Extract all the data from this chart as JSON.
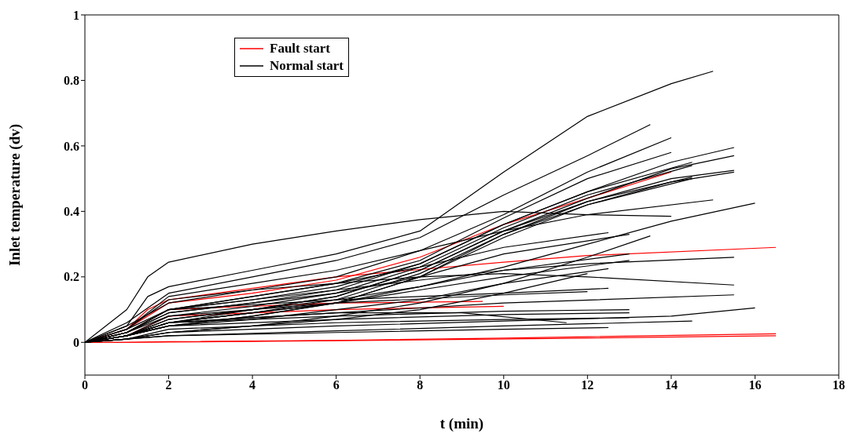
{
  "chart_data": {
    "type": "line",
    "xlabel": "t (min)",
    "ylabel": "Inlet temperature (dv)",
    "xlim": [
      0,
      18
    ],
    "xticks": [
      0,
      2,
      4,
      6,
      8,
      10,
      12,
      14,
      16,
      18
    ],
    "ylim": [
      -0.1,
      1
    ],
    "yticks": [
      0,
      0.2,
      0.4,
      0.6,
      0.8,
      1
    ],
    "grid": false,
    "legend": "top left",
    "marker": "none",
    "line_style": "solid",
    "series": [
      {
        "name": "Fault start",
        "color": "#ff0000",
        "x": [
          0,
          1,
          2,
          6,
          10,
          16.5
        ],
        "values": [
          0,
          0,
          0.002,
          0.006,
          0.013,
          0.026
        ]
      },
      {
        "name": "Normal start",
        "color": "#000000",
        "x": [
          0,
          1,
          1.5,
          2,
          4,
          6,
          8,
          10,
          12,
          14,
          15
        ],
        "values": [
          0,
          0.05,
          0.14,
          0.17,
          0.22,
          0.27,
          0.34,
          0.52,
          0.69,
          0.79,
          0.828
        ]
      },
      {
        "color": "#ff0000",
        "x": [
          0,
          1,
          6,
          12,
          16.5
        ],
        "values": [
          0,
          0,
          0.005,
          0.013,
          0.02
        ]
      },
      {
        "color": "#ff0000",
        "x": [
          0,
          1,
          1.5,
          2,
          6,
          10,
          12,
          16.5
        ],
        "values": [
          0,
          0.04,
          0.1,
          0.13,
          0.2,
          0.245,
          0.265,
          0.29
        ]
      },
      {
        "color": "#ff0000",
        "x": [
          0,
          1,
          2,
          4,
          6,
          8,
          10,
          12,
          14
        ],
        "values": [
          0,
          0.04,
          0.12,
          0.15,
          0.19,
          0.26,
          0.36,
          0.44,
          0.52
        ]
      },
      {
        "color": "#ff0000",
        "x": [
          0,
          1,
          2,
          6,
          10
        ],
        "values": [
          0,
          0.02,
          0.08,
          0.1,
          0.11
        ]
      },
      {
        "color": "#ff0000",
        "x": [
          0,
          1,
          2,
          6,
          9.5
        ],
        "values": [
          0,
          0.03,
          0.1,
          0.12,
          0.125
        ]
      },
      {
        "color": "#000000",
        "x": [
          0,
          1,
          1.5,
          2,
          4,
          6,
          8,
          10,
          12,
          14
        ],
        "values": [
          0,
          0.1,
          0.2,
          0.245,
          0.3,
          0.34,
          0.375,
          0.4,
          0.39,
          0.385
        ]
      },
      {
        "color": "#000000",
        "x": [
          0,
          1,
          2,
          4,
          6,
          8,
          10,
          12,
          13.5
        ],
        "values": [
          0,
          0.06,
          0.15,
          0.2,
          0.25,
          0.32,
          0.45,
          0.57,
          0.665
        ]
      },
      {
        "color": "#000000",
        "x": [
          0,
          1,
          2,
          4,
          6,
          8,
          10,
          12,
          14
        ],
        "values": [
          0,
          0.05,
          0.12,
          0.16,
          0.2,
          0.28,
          0.39,
          0.52,
          0.625
        ]
      },
      {
        "color": "#000000",
        "x": [
          0,
          1,
          2,
          4,
          6,
          8,
          10,
          12,
          14
        ],
        "values": [
          0,
          0.04,
          0.1,
          0.14,
          0.18,
          0.25,
          0.38,
          0.5,
          0.58
        ]
      },
      {
        "color": "#000000",
        "x": [
          0,
          1,
          2,
          4,
          6,
          8,
          10,
          12,
          14,
          15.5
        ],
        "values": [
          0,
          0.03,
          0.09,
          0.12,
          0.16,
          0.24,
          0.36,
          0.46,
          0.55,
          0.595
        ]
      },
      {
        "color": "#000000",
        "x": [
          0,
          1,
          2,
          4,
          6,
          8,
          10,
          12,
          14,
          15.5
        ],
        "values": [
          0,
          0.02,
          0.07,
          0.1,
          0.14,
          0.22,
          0.34,
          0.44,
          0.53,
          0.57
        ]
      },
      {
        "color": "#000000",
        "x": [
          0,
          1,
          2,
          4,
          6,
          8,
          10,
          12,
          14,
          15.5
        ],
        "values": [
          0,
          0.02,
          0.06,
          0.09,
          0.13,
          0.21,
          0.33,
          0.43,
          0.5,
          0.525
        ]
      },
      {
        "color": "#000000",
        "x": [
          0,
          1,
          2,
          4,
          6,
          8,
          10,
          12,
          14,
          15.5
        ],
        "values": [
          0,
          0.02,
          0.05,
          0.08,
          0.12,
          0.2,
          0.32,
          0.42,
          0.49,
          0.52
        ]
      },
      {
        "color": "#000000",
        "x": [
          0,
          1,
          2,
          4,
          6,
          8,
          10,
          12,
          14.5
        ],
        "values": [
          0,
          0.03,
          0.1,
          0.13,
          0.17,
          0.24,
          0.36,
          0.46,
          0.55
        ]
      },
      {
        "color": "#000000",
        "x": [
          0,
          1,
          2,
          4,
          6,
          8,
          10,
          12,
          14.5
        ],
        "values": [
          0,
          0.03,
          0.08,
          0.11,
          0.15,
          0.23,
          0.35,
          0.45,
          0.54
        ]
      },
      {
        "color": "#000000",
        "x": [
          0,
          1,
          2,
          4,
          6,
          8,
          10,
          12,
          14.5
        ],
        "values": [
          0,
          0.02,
          0.06,
          0.1,
          0.14,
          0.22,
          0.34,
          0.43,
          0.505
        ]
      },
      {
        "color": "#000000",
        "x": [
          0,
          1,
          2,
          4,
          6,
          8,
          10,
          12,
          14.5
        ],
        "values": [
          0,
          0.02,
          0.05,
          0.08,
          0.12,
          0.2,
          0.33,
          0.42,
          0.5
        ]
      },
      {
        "color": "#000000",
        "x": [
          0,
          1,
          2,
          4,
          6,
          8,
          10,
          12,
          15
        ],
        "values": [
          0,
          0.04,
          0.14,
          0.18,
          0.22,
          0.28,
          0.34,
          0.39,
          0.435
        ]
      },
      {
        "color": "#000000",
        "x": [
          0,
          1,
          2,
          4,
          6,
          8,
          10,
          12,
          14,
          16
        ],
        "values": [
          0,
          0.02,
          0.06,
          0.09,
          0.12,
          0.17,
          0.23,
          0.3,
          0.37,
          0.425
        ]
      },
      {
        "color": "#000000",
        "x": [
          0,
          1,
          2,
          4,
          6,
          8,
          10,
          13
        ],
        "values": [
          0,
          0.03,
          0.09,
          0.12,
          0.15,
          0.2,
          0.27,
          0.33
        ]
      },
      {
        "color": "#000000",
        "x": [
          0,
          1,
          2,
          4,
          6,
          8,
          10,
          12.5
        ],
        "values": [
          0,
          0.03,
          0.1,
          0.14,
          0.18,
          0.23,
          0.29,
          0.335
        ]
      },
      {
        "color": "#000000",
        "x": [
          0,
          1,
          2,
          4,
          6,
          8,
          10,
          13
        ],
        "values": [
          0,
          0.02,
          0.07,
          0.1,
          0.13,
          0.17,
          0.22,
          0.27
        ]
      },
      {
        "color": "#000000",
        "x": [
          0,
          1,
          2,
          4,
          6,
          8,
          10,
          12,
          13.5
        ],
        "values": [
          0,
          0.01,
          0.03,
          0.05,
          0.08,
          0.12,
          0.18,
          0.26,
          0.325
        ]
      },
      {
        "color": "#000000",
        "x": [
          0,
          1,
          2,
          4,
          6,
          8,
          10,
          12,
          15.5
        ],
        "values": [
          0,
          0.03,
          0.1,
          0.13,
          0.16,
          0.19,
          0.22,
          0.24,
          0.26
        ]
      },
      {
        "color": "#000000",
        "x": [
          0,
          1,
          2,
          4,
          6,
          8,
          10,
          12,
          15.5
        ],
        "values": [
          0,
          0.04,
          0.13,
          0.16,
          0.18,
          0.2,
          0.21,
          0.2,
          0.175
        ]
      },
      {
        "color": "#000000",
        "x": [
          0,
          1,
          2,
          6,
          10,
          15.5
        ],
        "values": [
          0,
          0.02,
          0.06,
          0.09,
          0.12,
          0.145
        ]
      },
      {
        "color": "#000000",
        "x": [
          0,
          1,
          2,
          6,
          10,
          14,
          16
        ],
        "values": [
          0,
          0.01,
          0.03,
          0.05,
          0.065,
          0.08,
          0.105
        ]
      },
      {
        "color": "#000000",
        "x": [
          0,
          1,
          2,
          6,
          10,
          14.5
        ],
        "values": [
          0,
          0.01,
          0.02,
          0.035,
          0.05,
          0.065
        ]
      },
      {
        "color": "#000000",
        "x": [
          0,
          1,
          2,
          6,
          10,
          12.5
        ],
        "values": [
          0,
          0.03,
          0.1,
          0.13,
          0.15,
          0.165
        ]
      },
      {
        "color": "#000000",
        "x": [
          0,
          1,
          2,
          6,
          10,
          12
        ],
        "values": [
          0,
          0.02,
          0.08,
          0.12,
          0.145,
          0.155
        ]
      },
      {
        "color": "#000000",
        "x": [
          0,
          1,
          2,
          6,
          10,
          13
        ],
        "values": [
          0,
          0.02,
          0.06,
          0.08,
          0.095,
          0.1
        ]
      },
      {
        "color": "#000000",
        "x": [
          0,
          1,
          2,
          6,
          10,
          13
        ],
        "values": [
          0,
          0.02,
          0.05,
          0.07,
          0.085,
          0.09
        ]
      },
      {
        "color": "#000000",
        "x": [
          0,
          1,
          2,
          6,
          10,
          13
        ],
        "values": [
          0,
          0.01,
          0.04,
          0.06,
          0.07,
          0.075
        ]
      },
      {
        "color": "#000000",
        "x": [
          0,
          1,
          2,
          6,
          10,
          12.5
        ],
        "values": [
          0,
          0.01,
          0.02,
          0.03,
          0.04,
          0.045
        ]
      },
      {
        "color": "#000000",
        "x": [
          0,
          1,
          2,
          6,
          9,
          11.5
        ],
        "values": [
          0,
          0.02,
          0.06,
          0.09,
          0.09,
          0.06
        ]
      },
      {
        "color": "#000000",
        "x": [
          0,
          1,
          2,
          4,
          6,
          8,
          10,
          12
        ],
        "values": [
          0,
          0.01,
          0.03,
          0.05,
          0.07,
          0.1,
          0.15,
          0.21
        ]
      },
      {
        "color": "#000000",
        "x": [
          0,
          1,
          2,
          4,
          6,
          8,
          10,
          12.5
        ],
        "values": [
          0,
          0.02,
          0.05,
          0.07,
          0.1,
          0.13,
          0.18,
          0.225
        ]
      },
      {
        "color": "#000000",
        "x": [
          0,
          1,
          2,
          4,
          6,
          8,
          10,
          13
        ],
        "values": [
          0,
          0.02,
          0.06,
          0.09,
          0.12,
          0.16,
          0.2,
          0.25
        ]
      }
    ]
  }
}
